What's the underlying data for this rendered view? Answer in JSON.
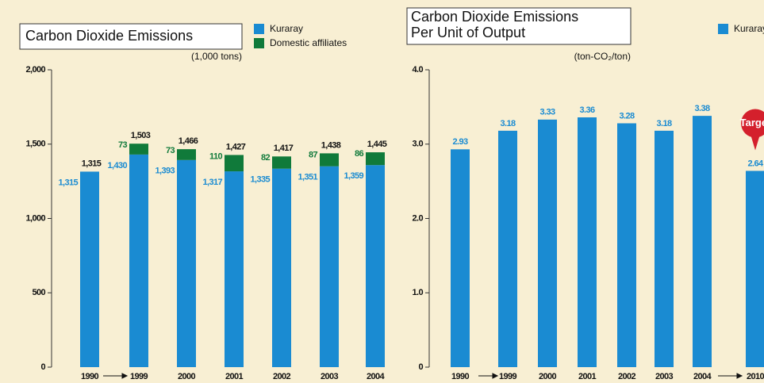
{
  "chart_data": [
    {
      "type": "stacked_bar",
      "title": "Carbon Dioxide Emissions",
      "unit": "(1,000 tons)",
      "categories": [
        "1990",
        "1999",
        "2000",
        "2001",
        "2002",
        "2003",
        "2004"
      ],
      "series": [
        {
          "name": "Kuraray",
          "color": "#1a8bd2",
          "values": [
            1315,
            1430,
            1393,
            1317,
            1335,
            1351,
            1359
          ],
          "value_labels": [
            "1,315",
            "1,430",
            "1,393",
            "1,317",
            "1,335",
            "1,351",
            "1,359"
          ]
        },
        {
          "name": "Domestic affiliates",
          "color": "#107a3a",
          "values": [
            null,
            73,
            73,
            110,
            82,
            87,
            86
          ]
        }
      ],
      "totals": [
        1315,
        1503,
        1466,
        1427,
        1417,
        1438,
        1445
      ],
      "total_labels": [
        "1,315",
        "1,503",
        "1,466",
        "1,427",
        "1,417",
        "1,438",
        "1,445"
      ],
      "ylim": [
        0,
        2000
      ],
      "yticks": [
        0,
        500,
        {
          "value": 1000,
          "label": "1,000"
        },
        {
          "value": 1500,
          "label": "1,500"
        },
        {
          "value": 2000,
          "label": "2,000"
        }
      ]
    },
    {
      "type": "bar",
      "title": [
        "Carbon Dioxide Emissions",
        "Per Unit of Output"
      ],
      "unit": "(ton-CO₂/ton)",
      "categories": [
        "1990",
        "1999",
        "2000",
        "2001",
        "2002",
        "2003",
        "2004",
        "2010"
      ],
      "series": [
        {
          "name": "Kuraray",
          "color": "#1a8bd2",
          "values": [
            2.93,
            3.18,
            3.33,
            3.36,
            3.28,
            3.18,
            3.38,
            2.64
          ]
        }
      ],
      "annotation": "Target",
      "ylim": [
        0,
        4
      ],
      "yticks": [
        0,
        {
          "value": 1,
          "label": "1.0"
        },
        {
          "value": 2,
          "label": "2.0"
        },
        {
          "value": 3,
          "label": "3.0"
        },
        {
          "value": 4,
          "label": "4.0"
        }
      ]
    }
  ]
}
